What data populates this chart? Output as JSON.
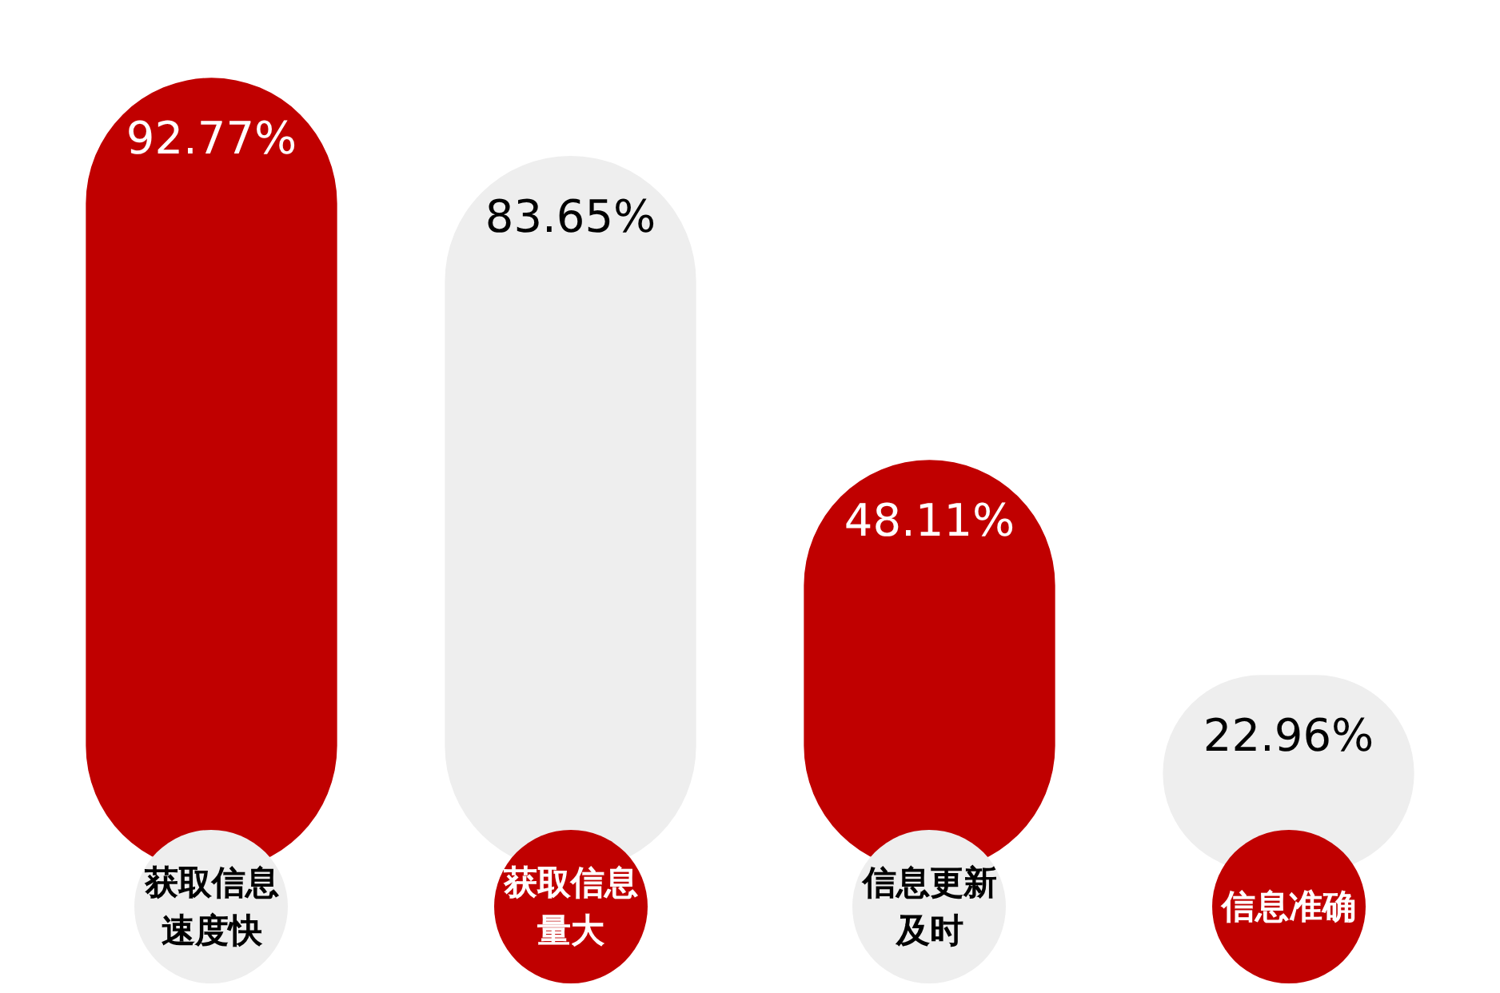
{
  "chart_data": {
    "type": "bar",
    "categories": [
      "获取信息速度快",
      "获取信息量大",
      "信息更新及时",
      "信息准确"
    ],
    "values": [
      92.77,
      83.65,
      48.11,
      22.96
    ],
    "value_labels": [
      "92.77%",
      "83.65%",
      "48.11%",
      "22.96%"
    ],
    "colors": [
      "#c00000",
      "#eeeeee",
      "#c00000",
      "#eeeeee"
    ],
    "legend": false
  }
}
